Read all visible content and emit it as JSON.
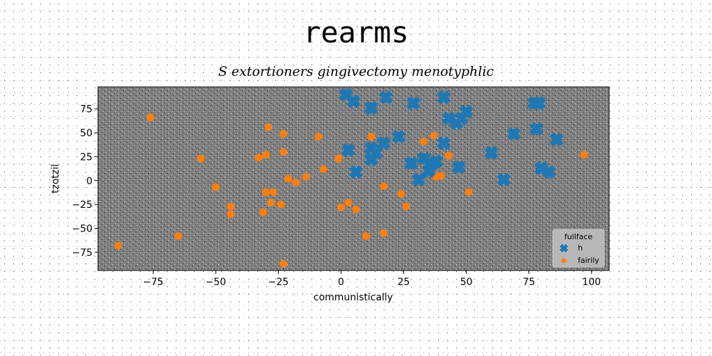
{
  "chart_data": {
    "type": "scatter",
    "title": "rearms",
    "subtitle": "S extortioners gingivectomy menotyphlic",
    "xlabel": "communistically",
    "ylabel": "tzotzil",
    "xlim": [
      -97,
      107
    ],
    "ylim": [
      -94,
      98
    ],
    "xticks": [
      -75,
      -50,
      -25,
      0,
      25,
      50,
      75,
      100
    ],
    "yticks": [
      -75,
      -50,
      -25,
      0,
      25,
      50,
      75
    ],
    "grid": false,
    "legend": {
      "title": "fullface",
      "position": "lower right"
    },
    "colors": {
      "h": "#1f77b4",
      "fairily": "#ff7f0e",
      "plot_bg": "#808080"
    },
    "series": [
      {
        "name": "h",
        "marker": "X",
        "points": [
          [
            2,
            90
          ],
          [
            5,
            83
          ],
          [
            12,
            76
          ],
          [
            18,
            87
          ],
          [
            29,
            81
          ],
          [
            41,
            87
          ],
          [
            43,
            65
          ],
          [
            46,
            60
          ],
          [
            50,
            72
          ],
          [
            48,
            65
          ],
          [
            77,
            81
          ],
          [
            79,
            81
          ],
          [
            86,
            43
          ],
          [
            78,
            54
          ],
          [
            69,
            49
          ],
          [
            60,
            29
          ],
          [
            65,
            1
          ],
          [
            80,
            13
          ],
          [
            83,
            9
          ],
          [
            47,
            14
          ],
          [
            41,
            39
          ],
          [
            38,
            20
          ],
          [
            36,
            17
          ],
          [
            33,
            23
          ],
          [
            35,
            10
          ],
          [
            28,
            18
          ],
          [
            31,
            1
          ],
          [
            23,
            46
          ],
          [
            17,
            39
          ],
          [
            12,
            34
          ],
          [
            14,
            29
          ],
          [
            12,
            22
          ],
          [
            3,
            32
          ],
          [
            6,
            9
          ]
        ]
      },
      {
        "name": "fairily",
        "marker": "o",
        "points": [
          [
            -76,
            66
          ],
          [
            -89,
            -68
          ],
          [
            -65,
            -58
          ],
          [
            -56,
            23
          ],
          [
            -50,
            -7
          ],
          [
            -44,
            -27
          ],
          [
            -44,
            -35
          ],
          [
            -33,
            24
          ],
          [
            -31,
            -33
          ],
          [
            -30,
            27
          ],
          [
            -29,
            56
          ],
          [
            -30,
            -12
          ],
          [
            -28,
            -23
          ],
          [
            -27,
            -12
          ],
          [
            -24,
            -25
          ],
          [
            -23,
            49
          ],
          [
            -23,
            30
          ],
          [
            -21,
            2
          ],
          [
            -18,
            -2
          ],
          [
            -14,
            4
          ],
          [
            -9,
            46
          ],
          [
            -7,
            12
          ],
          [
            -1,
            23
          ],
          [
            0,
            -28
          ],
          [
            3,
            -23
          ],
          [
            6,
            -30
          ],
          [
            10,
            -58
          ],
          [
            12,
            46
          ],
          [
            17,
            -6
          ],
          [
            17,
            -55
          ],
          [
            24,
            -14
          ],
          [
            26,
            -27
          ],
          [
            33,
            41
          ],
          [
            37,
            47
          ],
          [
            38,
            4
          ],
          [
            40,
            5
          ],
          [
            43,
            26
          ],
          [
            51,
            -12
          ],
          [
            97,
            27
          ],
          [
            -23,
            -87
          ]
        ]
      }
    ]
  }
}
